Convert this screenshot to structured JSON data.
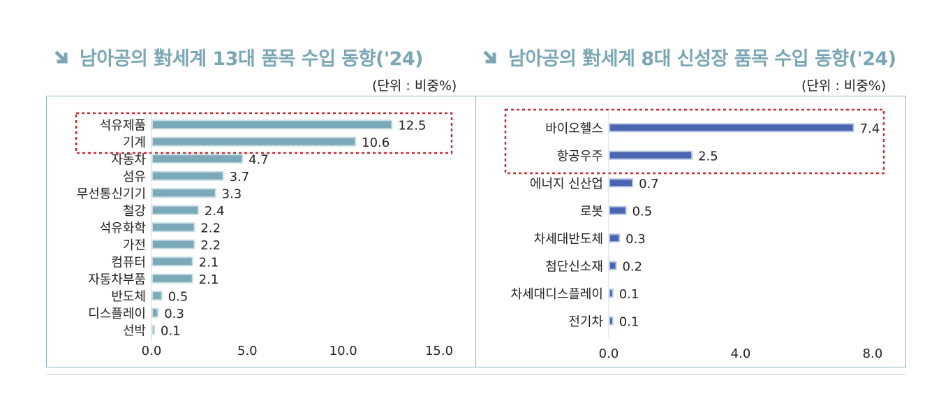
{
  "left_panel": {
    "title": "남아공의 對세계 13대 품목 수입 동향('24)",
    "unit": "(단위 : 비중%)"
  },
  "right_panel": {
    "title": "남아공의 對세계 8대 신성장 품목 수입 동향('24)",
    "unit": "(단위 : 비중%)"
  },
  "colors": {
    "left_bar": "#7ba9b8",
    "right_bar": "#4a66b0",
    "highlight": "#d0262e",
    "title": "#7aa6b6"
  },
  "chart_data": [
    {
      "type": "bar",
      "orientation": "horizontal",
      "title": "남아공의 對세계 13대 품목 수입 동향('24)",
      "unit": "(단위 : 비중%)",
      "categories": [
        "석유제품",
        "기계",
        "자동차",
        "섬유",
        "무선통신기기",
        "철강",
        "석유화학",
        "가전",
        "컴퓨터",
        "자동차부품",
        "반도체",
        "디스플레이",
        "선박"
      ],
      "values": [
        12.5,
        10.6,
        4.7,
        3.7,
        3.3,
        2.4,
        2.2,
        2.2,
        2.1,
        2.1,
        0.5,
        0.3,
        0.1
      ],
      "value_labels": [
        "12.5",
        "10.6",
        "4.7",
        "3.7",
        "3.3",
        "2.4",
        "2.2",
        "2.2",
        "2.1",
        "2.1",
        "0.5",
        "0.3",
        "0.1"
      ],
      "xlim": [
        0,
        15
      ],
      "xticks": [
        "0.0",
        "5.0",
        "10.0",
        "15.0"
      ],
      "highlighted": [
        "석유제품",
        "기계"
      ]
    },
    {
      "type": "bar",
      "orientation": "horizontal",
      "title": "남아공의 對세계 8대 신성장 품목 수입 동향('24)",
      "unit": "(단위 : 비중%)",
      "categories": [
        "바이오헬스",
        "항공우주",
        "에너지 신산업",
        "로봇",
        "차세대반도체",
        "첨단신소재",
        "차세대디스플레이",
        "전기차"
      ],
      "values": [
        7.4,
        2.5,
        0.7,
        0.5,
        0.3,
        0.2,
        0.1,
        0.1
      ],
      "value_labels": [
        "7.4",
        "2.5",
        "0.7",
        "0.5",
        "0.3",
        "0.2",
        "0.1",
        "0.1"
      ],
      "xlim": [
        0,
        8
      ],
      "xticks": [
        "0.0",
        "4.0",
        "8.0"
      ],
      "highlighted": [
        "바이오헬스",
        "항공우주"
      ]
    }
  ]
}
